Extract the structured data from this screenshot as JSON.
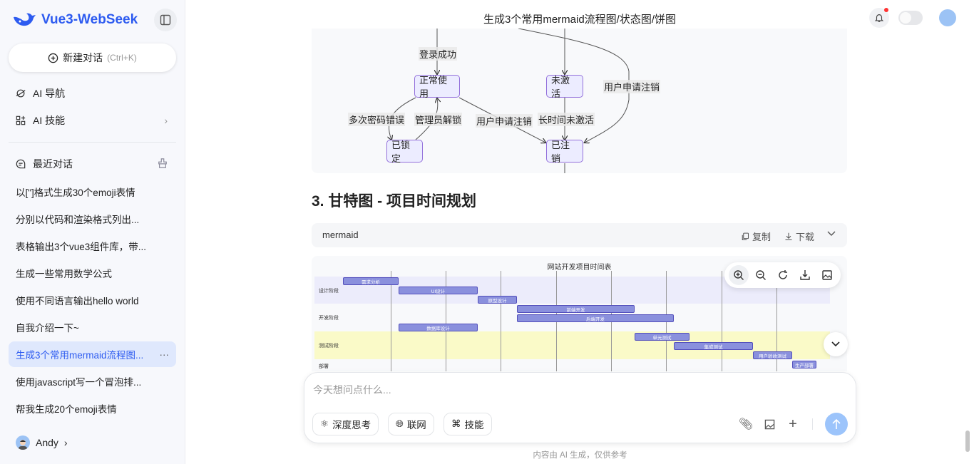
{
  "app": {
    "name": "Vue3-WebSeek",
    "brand_color": "#2d5bf0"
  },
  "sidebar": {
    "new_chat": {
      "label": "新建对话",
      "shortcut": "(Ctrl+K)"
    },
    "nav": [
      {
        "label": "AI 导航",
        "icon": "planet-icon"
      },
      {
        "label": "AI 技能",
        "icon": "apps-icon"
      }
    ],
    "recent_label": "最近对话",
    "history": [
      "以[\"]格式生成30个emoji表情",
      "分别以代码和渲染格式列出...",
      "表格输出3个vue3组件库，带...",
      "生成一些常用数学公式",
      "使用不同语言输出hello world",
      "自我介绍一下~",
      "生成3个常用mermaid流程图...",
      "使用javascript写一个冒泡排...",
      "帮我生成20个emoji表情"
    ],
    "active_index": 6,
    "user": "Andy"
  },
  "header": {
    "title": "生成3个常用mermaid流程图/状态图/饼图"
  },
  "state_diagram": {
    "nodes": [
      "正常使用",
      "未激活",
      "已锁定",
      "已注销"
    ],
    "edges": [
      "登录成功",
      "用户申请注销",
      "多次密码错误",
      "管理员解锁",
      "用户申请注销",
      "长时间未激活"
    ]
  },
  "section_heading": "3. 甘特图 - 项目时间规划",
  "code_block": {
    "language": "mermaid",
    "copy": "复制",
    "download": "下载"
  },
  "gantt": {
    "title": "网站开发项目时间表",
    "sections": [
      "设计阶段",
      "开发阶段",
      "测试阶段",
      "部署"
    ],
    "tasks": [
      "需求分析",
      "UI设计",
      "原型设计",
      "前端开发",
      "后端开发",
      "数据库设计",
      "单元测试",
      "集成测试",
      "用户验收测试",
      "生产部署"
    ],
    "section_colors": [
      "#ececfb",
      "#f8f9fb",
      "#fafac8",
      "#f8f9fb"
    ]
  },
  "chat_input": {
    "placeholder": "今天想问点什么...",
    "chips": [
      "深度思考",
      "联网",
      "技能"
    ]
  },
  "footnote": "内容由 AI 生成，仅供参考"
}
